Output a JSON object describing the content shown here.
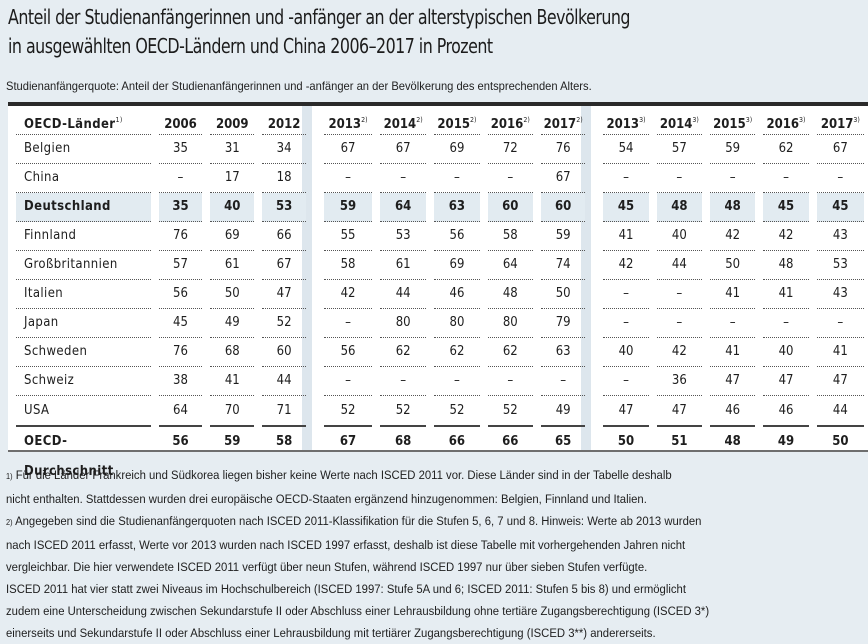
{
  "title_line1": "Anteil der Studienanfängerinnen und -anfänger an der alterstypischen Bevölkerung",
  "title_line2": "in ausgewählten OECD-Ländern und China 2006–2017 in Prozent",
  "subtitle": "Studienanfängerquote: Anteil der Studienanfängerinnen und -anfänger an der Bevölkerung des entsprechenden Alters.",
  "table": {
    "header_label": "OECD-Länder",
    "header_label_note": "1)",
    "columns": [
      {
        "year": "2006",
        "note": ""
      },
      {
        "year": "2009",
        "note": ""
      },
      {
        "year": "2012",
        "note": ""
      },
      {
        "year": "2013",
        "note": "2)"
      },
      {
        "year": "2014",
        "note": "2)"
      },
      {
        "year": "2015",
        "note": "2)"
      },
      {
        "year": "2016",
        "note": "2)"
      },
      {
        "year": "2017",
        "note": "2)"
      },
      {
        "year": "2013",
        "note": "3)"
      },
      {
        "year": "2014",
        "note": "3)"
      },
      {
        "year": "2015",
        "note": "3)"
      },
      {
        "year": "2016",
        "note": "3)"
      },
      {
        "year": "2017",
        "note": "3)"
      }
    ],
    "rows": [
      {
        "country": "Belgien",
        "values": [
          "35",
          "31",
          "34",
          "67",
          "67",
          "69",
          "72",
          "76",
          "54",
          "57",
          "59",
          "62",
          "67"
        ]
      },
      {
        "country": "China",
        "values": [
          "–",
          "17",
          "18",
          "–",
          "–",
          "–",
          "–",
          "67",
          "–",
          "–",
          "–",
          "–",
          "–"
        ]
      },
      {
        "country": "Deutschland",
        "highlight": true,
        "values": [
          "35",
          "40",
          "53",
          "59",
          "64",
          "63",
          "60",
          "60",
          "45",
          "48",
          "48",
          "45",
          "45"
        ]
      },
      {
        "country": "Finnland",
        "values": [
          "76",
          "69",
          "66",
          "55",
          "53",
          "56",
          "58",
          "59",
          "41",
          "40",
          "42",
          "42",
          "43"
        ]
      },
      {
        "country": "Großbritannien",
        "values": [
          "57",
          "61",
          "67",
          "58",
          "61",
          "69",
          "64",
          "74",
          "42",
          "44",
          "50",
          "48",
          "53"
        ]
      },
      {
        "country": "Italien",
        "values": [
          "56",
          "50",
          "47",
          "42",
          "44",
          "46",
          "48",
          "50",
          "–",
          "–",
          "41",
          "41",
          "43"
        ]
      },
      {
        "country": "Japan",
        "values": [
          "45",
          "49",
          "52",
          "–",
          "80",
          "80",
          "80",
          "79",
          "–",
          "–",
          "–",
          "–",
          "–"
        ]
      },
      {
        "country": "Schweden",
        "values": [
          "76",
          "68",
          "60",
          "56",
          "62",
          "62",
          "62",
          "63",
          "40",
          "42",
          "41",
          "40",
          "41"
        ]
      },
      {
        "country": "Schweiz",
        "values": [
          "38",
          "41",
          "44",
          "–",
          "–",
          "–",
          "–",
          "–",
          "–",
          "36",
          "47",
          "47",
          "47"
        ]
      },
      {
        "country": "USA",
        "values": [
          "64",
          "70",
          "71",
          "52",
          "52",
          "52",
          "52",
          "49",
          "47",
          "47",
          "46",
          "46",
          "44"
        ]
      }
    ],
    "average": {
      "country": "OECD-Durchschnitt",
      "values": [
        "56",
        "59",
        "58",
        "67",
        "68",
        "66",
        "66",
        "65",
        "50",
        "51",
        "48",
        "49",
        "50"
      ]
    }
  },
  "footnotes": [
    {
      "mark": "1)",
      "text": "Für die Länder Frankreich und Südkorea liegen bisher keine Werte nach ISCED 2011 vor. Diese Länder sind in der Tabelle deshalb"
    },
    {
      "mark": "",
      "text": "nicht enthalten. Stattdessen wurden drei europäische OECD-Staaten ergänzend hinzugenommen: Belgien, Finnland und Italien."
    },
    {
      "mark": "2)",
      "text": "Angegeben sind die Studienanfängerquoten nach ISCED 2011-Klassifikation für die Stufen 5, 6, 7 und 8. Hinweis: Werte ab 2013 wurden"
    },
    {
      "mark": "",
      "text": "nach ISCED 2011 erfasst, Werte vor 2013 wurden nach ISCED 1997 erfasst, deshalb ist diese Tabelle mit vorhergehenden Jahren nicht"
    },
    {
      "mark": "",
      "text": "vergleichbar. Die hier verwendete ISCED 2011 verfügt über neun Stufen, während ISCED 1997 nur über sieben Stufen verfügte."
    },
    {
      "mark": "",
      "text": "ISCED 2011 hat vier statt zwei Niveaus im Hochschulbereich (ISCED 1997: Stufe 5A und 6; ISCED 2011: Stufen 5 bis 8) und ermöglicht"
    },
    {
      "mark": "",
      "text": "zudem eine Unterscheidung zwischen Sekundarstufe II oder Abschluss einer Lehrausbildung ohne tertiäre Zugangsberechtigung (ISCED 3*)"
    },
    {
      "mark": "",
      "text": "einerseits und Sekundarstufe II oder Abschluss einer Lehrausbildung mit tertiärer Zugangsberechtigung (ISCED 3**) andererseits."
    }
  ]
}
